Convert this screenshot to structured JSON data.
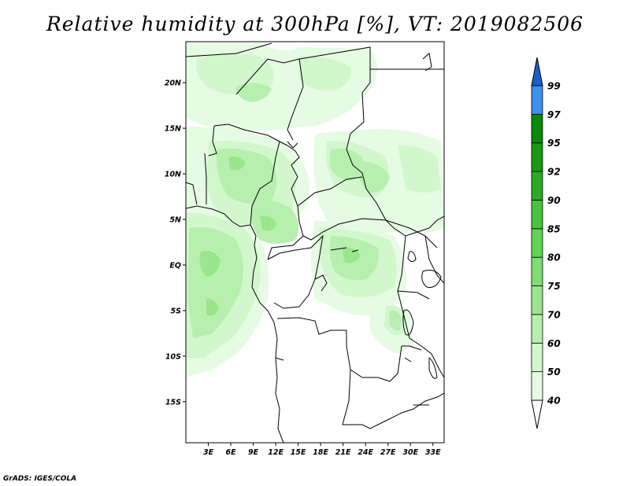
{
  "title": "Relative humidity at 300hPa [%], VT: 2019082506",
  "credit": "GrADS: IGES/COLA",
  "map": {
    "lon_range": [
      0,
      34.5
    ],
    "lat_range": [
      -19.5,
      24.5
    ],
    "lat_ticks": [
      {
        "value": 20,
        "label": "20N"
      },
      {
        "value": 15,
        "label": "15N"
      },
      {
        "value": 10,
        "label": "10N"
      },
      {
        "value": 5,
        "label": "5N"
      },
      {
        "value": 0,
        "label": "EQ"
      },
      {
        "value": -5,
        "label": "5S"
      },
      {
        "value": -10,
        "label": "10S"
      },
      {
        "value": -15,
        "label": "15S"
      }
    ],
    "lon_ticks": [
      {
        "value": 3,
        "label": "3E"
      },
      {
        "value": 6,
        "label": "6E"
      },
      {
        "value": 9,
        "label": "9E"
      },
      {
        "value": 12,
        "label": "12E"
      },
      {
        "value": 15,
        "label": "15E"
      },
      {
        "value": 18,
        "label": "18E"
      },
      {
        "value": 21,
        "label": "21E"
      },
      {
        "value": 24,
        "label": "24E"
      },
      {
        "value": 27,
        "label": "27E"
      },
      {
        "value": 30,
        "label": "30E"
      },
      {
        "value": 33,
        "label": "33E"
      }
    ]
  },
  "colorbar": {
    "levels": [
      {
        "label": "40",
        "color": "#e6fbe3"
      },
      {
        "label": "50",
        "color": "#d2f7cd"
      },
      {
        "label": "60",
        "color": "#b7f0ae"
      },
      {
        "label": "70",
        "color": "#9ae68d"
      },
      {
        "label": "75",
        "color": "#7fdd72"
      },
      {
        "label": "80",
        "color": "#5fd453"
      },
      {
        "label": "85",
        "color": "#45c43c"
      },
      {
        "label": "90",
        "color": "#2aaa25"
      },
      {
        "label": "92",
        "color": "#179a14"
      },
      {
        "label": "95",
        "color": "#0a880a"
      },
      {
        "label": "97",
        "color": "#3d8ff0"
      },
      {
        "label": "99",
        "color": "#2274dc"
      }
    ],
    "top_color": "#1a5fcc",
    "bottom_color": "#ffffff"
  }
}
